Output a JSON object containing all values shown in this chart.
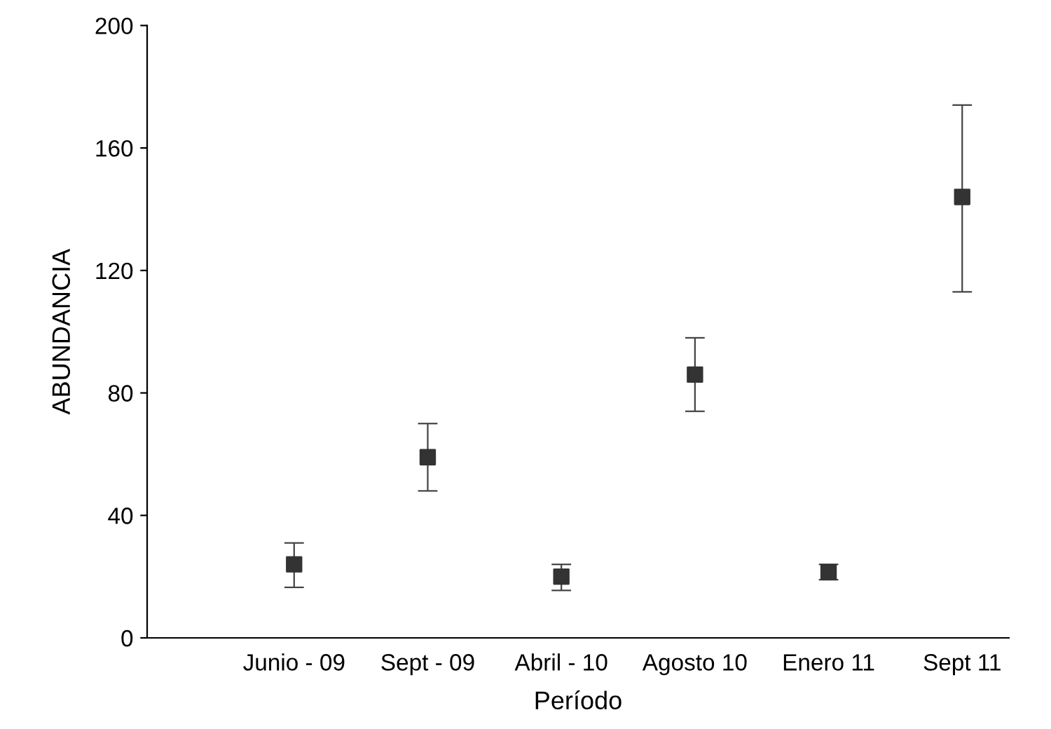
{
  "chart_data": {
    "type": "scatter",
    "xlabel": "Período",
    "ylabel": "ABUNDANCIA",
    "categories": [
      "Junio - 09",
      "Sept - 09",
      "Abril - 10",
      "Agosto 10",
      "Enero 11",
      "Sept 11"
    ],
    "values": [
      24,
      59,
      20,
      86,
      21.5,
      144
    ],
    "errors": [
      [
        16.5,
        31
      ],
      [
        48,
        70
      ],
      [
        15.5,
        24
      ],
      [
        74,
        98
      ],
      [
        19,
        24
      ],
      [
        113,
        174
      ]
    ],
    "color": "#333333",
    "marker": "square",
    "grid": false,
    "ylim": [
      0,
      200
    ],
    "yticks": [
      0,
      40,
      80,
      120,
      160,
      200
    ]
  }
}
